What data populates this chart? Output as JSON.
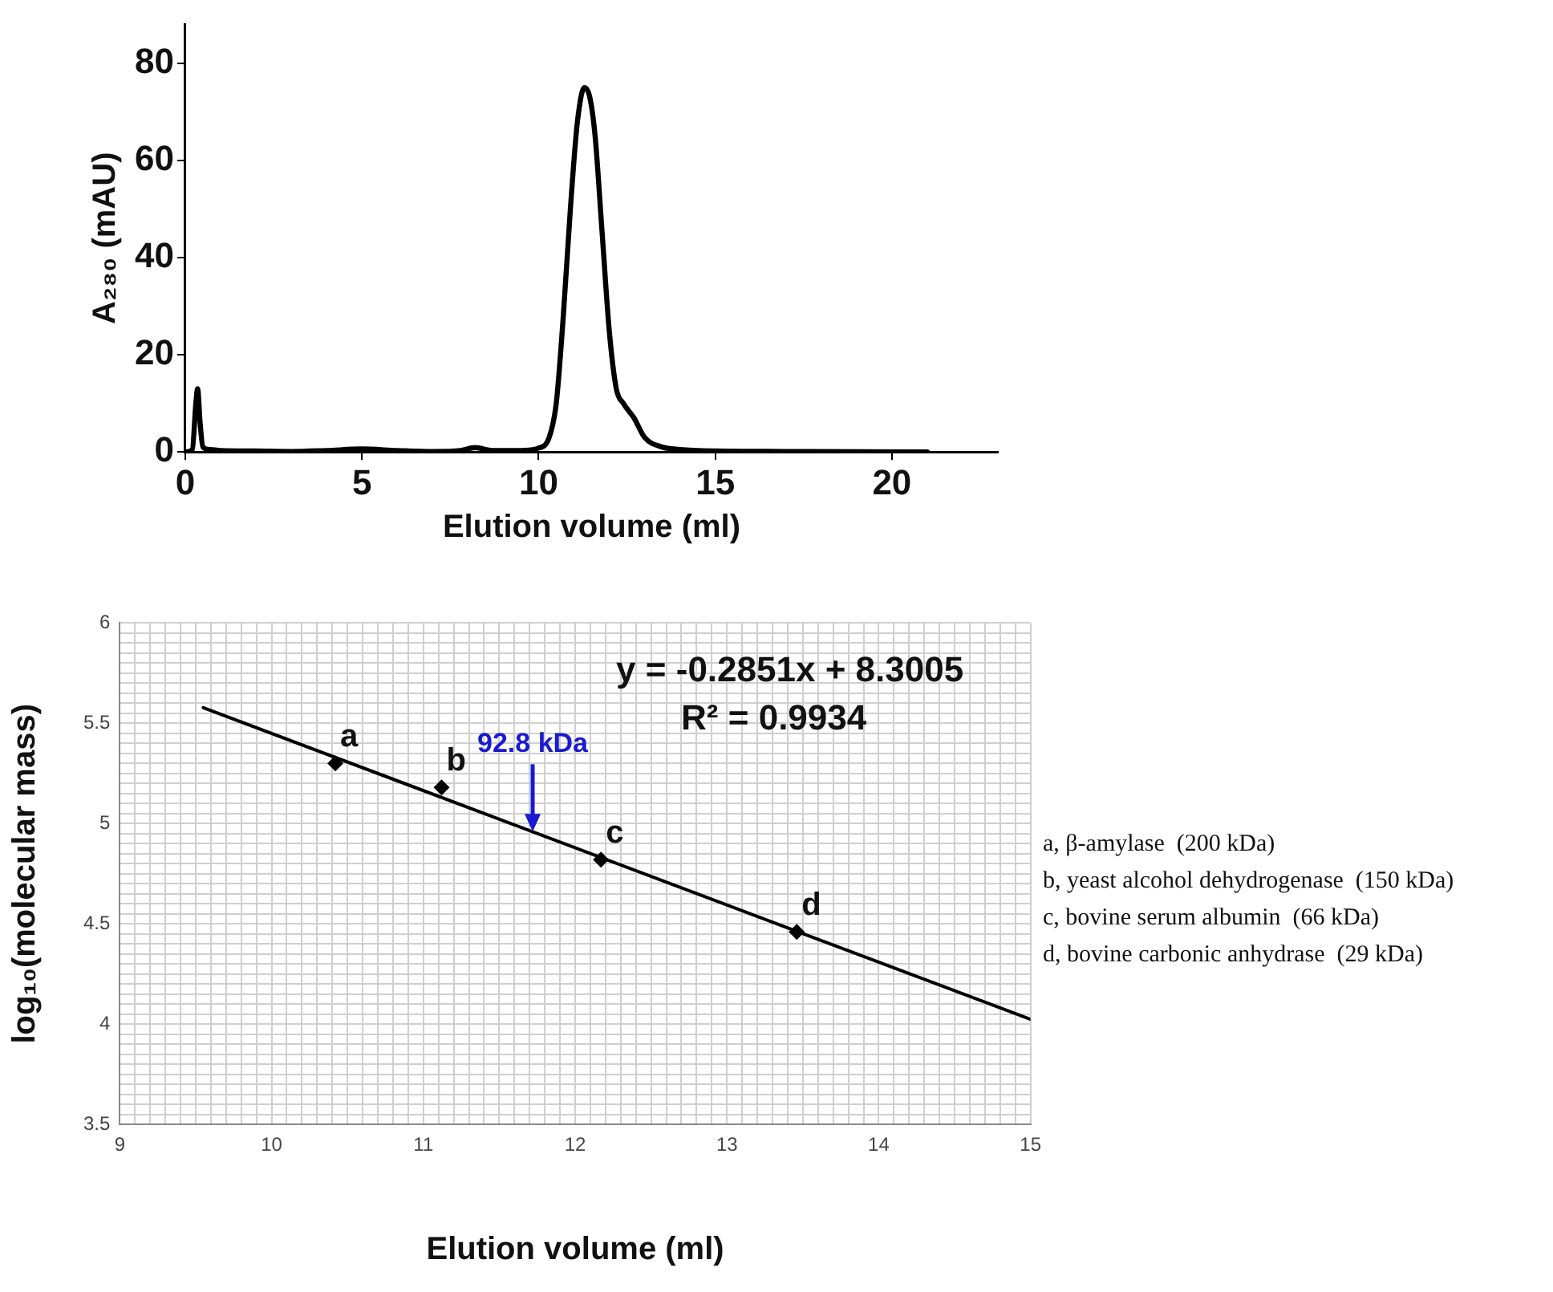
{
  "chart_data": [
    {
      "type": "line",
      "xlabel": "Elution volume (ml)",
      "ylabel": "A₂₈₀ (mAU)",
      "marker": "none",
      "grid": false,
      "x": [
        0,
        0.2,
        0.3,
        0.35,
        0.42,
        0.5,
        0.7,
        1,
        2,
        3,
        4,
        5,
        6,
        7,
        7.8,
        8.2,
        8.7,
        9.5,
        10,
        10.3,
        10.5,
        10.7,
        10.9,
        11.1,
        11.3,
        11.45,
        11.6,
        11.8,
        12,
        12.2,
        12.4,
        12.7,
        13,
        13.5,
        14,
        15,
        17,
        21
      ],
      "series": [
        {
          "color": "#000000",
          "values": [
            0,
            0.5,
            10,
            13,
            6,
            1,
            0.5,
            0.3,
            0.2,
            0.1,
            0.3,
            0.6,
            0.3,
            0.1,
            0.3,
            0.9,
            0.3,
            0.3,
            0.8,
            3,
            10,
            28,
            50,
            68,
            75,
            73,
            65,
            45,
            25,
            13,
            10,
            7,
            3,
            1,
            0.5,
            0.2,
            0.1,
            0
          ]
        }
      ],
      "xlim": [
        0,
        23
      ],
      "ylim": [
        0,
        88
      ],
      "xticks": [
        0,
        5,
        10,
        15,
        20
      ],
      "yticks": [
        0,
        20,
        40,
        60,
        80
      ]
    },
    {
      "type": "scatter",
      "xlabel": "Elution volume (ml)",
      "ylabel": "log₁₀(molecular mass)",
      "marker": "diamond",
      "grid": true,
      "series": [
        {
          "color": "#000000",
          "x": [
            10.42,
            11.12,
            12.17,
            13.46
          ],
          "values": [
            5.3,
            5.18,
            4.82,
            4.46
          ]
        },
        {
          "type": "line",
          "marker": "none",
          "color": "#000000",
          "x": [
            9.55,
            15
          ],
          "values": [
            5.578,
            4.024
          ]
        }
      ],
      "annotations": [
        "y = -0.2851x + 8.3005",
        "R² = 0.9934",
        "a, β-amylase  (200 kDa)",
        "b, yeast alcohol dehydrogenase  (150 kDa)",
        "c, bovine serum albumin  (66 kDa)",
        "d, bovine carbonic anhydrase  (29 kDa)",
        {
          "text": "a",
          "x": 10.42,
          "y": 5.3
        },
        {
          "text": "b",
          "x": 11.12,
          "y": 5.18
        },
        {
          "text": "c",
          "x": 12.17,
          "y": 4.82
        },
        {
          "text": "d",
          "x": 13.46,
          "y": 4.46
        },
        {
          "text": "92.8 kDa",
          "x": 11.72,
          "y": 4.96
        }
      ],
      "xlim": [
        9,
        15
      ],
      "ylim": [
        3.5,
        6
      ],
      "xticks": [
        9,
        {
          "value": 9.1,
          "label": null
        },
        {
          "value": 9.2,
          "label": null
        },
        {
          "value": 9.3,
          "label": null
        },
        {
          "value": 9.4,
          "label": null
        },
        {
          "value": 9.5,
          "label": null
        },
        {
          "value": 9.6,
          "label": null
        },
        {
          "value": 9.7,
          "label": null
        },
        {
          "value": 9.8,
          "label": null
        },
        {
          "value": 9.9,
          "label": null
        },
        10,
        {
          "value": 10.1,
          "label": null
        },
        {
          "value": 10.2,
          "label": null
        },
        {
          "value": 10.3,
          "label": null
        },
        {
          "value": 10.4,
          "label": null
        },
        {
          "value": 10.5,
          "label": null
        },
        {
          "value": 10.6,
          "label": null
        },
        {
          "value": 10.7,
          "label": null
        },
        {
          "value": 10.8,
          "label": null
        },
        {
          "value": 10.9,
          "label": null
        },
        11,
        {
          "value": 11.1,
          "label": null
        },
        {
          "value": 11.2,
          "label": null
        },
        {
          "value": 11.3,
          "label": null
        },
        {
          "value": 11.4,
          "label": null
        },
        {
          "value": 11.5,
          "label": null
        },
        {
          "value": 11.6,
          "label": null
        },
        {
          "value": 11.7,
          "label": null
        },
        {
          "value": 11.8,
          "label": null
        },
        {
          "value": 11.9,
          "label": null
        },
        12,
        {
          "value": 12.1,
          "label": null
        },
        {
          "value": 12.2,
          "label": null
        },
        {
          "value": 12.3,
          "label": null
        },
        {
          "value": 12.4,
          "label": null
        },
        {
          "value": 12.5,
          "label": null
        },
        {
          "value": 12.6,
          "label": null
        },
        {
          "value": 12.7,
          "label": null
        },
        {
          "value": 12.8,
          "label": null
        },
        {
          "value": 12.9,
          "label": null
        },
        13,
        {
          "value": 13.1,
          "label": null
        },
        {
          "value": 13.2,
          "label": null
        },
        {
          "value": 13.3,
          "label": null
        },
        {
          "value": 13.4,
          "label": null
        },
        {
          "value": 13.5,
          "label": null
        },
        {
          "value": 13.6,
          "label": null
        },
        {
          "value": 13.7,
          "label": null
        },
        {
          "value": 13.8,
          "label": null
        },
        {
          "value": 13.9,
          "label": null
        },
        14,
        {
          "value": 14.1,
          "label": null
        },
        {
          "value": 14.2,
          "label": null
        },
        {
          "value": 14.3,
          "label": null
        },
        {
          "value": 14.4,
          "label": null
        },
        {
          "value": 14.5,
          "label": null
        },
        {
          "value": 14.6,
          "label": null
        },
        {
          "value": 14.7,
          "label": null
        },
        {
          "value": 14.8,
          "label": null
        },
        {
          "value": 14.9,
          "label": null
        },
        15
      ],
      "yticks": [
        3.5,
        {
          "value": 3.55,
          "label": null
        },
        {
          "value": 3.6,
          "label": null
        },
        {
          "value": 3.65,
          "label": null
        },
        {
          "value": 3.7,
          "label": null
        },
        {
          "value": 3.75,
          "label": null
        },
        {
          "value": 3.8,
          "label": null
        },
        {
          "value": 3.85,
          "label": null
        },
        {
          "value": 3.9,
          "label": null
        },
        {
          "value": 3.95,
          "label": null
        },
        4,
        {
          "value": 4.05,
          "label": null
        },
        {
          "value": 4.1,
          "label": null
        },
        {
          "value": 4.15,
          "label": null
        },
        {
          "value": 4.2,
          "label": null
        },
        {
          "value": 4.25,
          "label": null
        },
        {
          "value": 4.3,
          "label": null
        },
        {
          "value": 4.35,
          "label": null
        },
        {
          "value": 4.4,
          "label": null
        },
        {
          "value": 4.45,
          "label": null
        },
        4.5,
        {
          "value": 4.55,
          "label": null
        },
        {
          "value": 4.6,
          "label": null
        },
        {
          "value": 4.65,
          "label": null
        },
        {
          "value": 4.7,
          "label": null
        },
        {
          "value": 4.75,
          "label": null
        },
        {
          "value": 4.8,
          "label": null
        },
        {
          "value": 4.85,
          "label": null
        },
        {
          "value": 4.9,
          "label": null
        },
        {
          "value": 4.95,
          "label": null
        },
        5,
        {
          "value": 5.05,
          "label": null
        },
        {
          "value": 5.1,
          "label": null
        },
        {
          "value": 5.15,
          "label": null
        },
        {
          "value": 5.2,
          "label": null
        },
        {
          "value": 5.25,
          "label": null
        },
        {
          "value": 5.3,
          "label": null
        },
        {
          "value": 5.35,
          "label": null
        },
        {
          "value": 5.4,
          "label": null
        },
        {
          "value": 5.45,
          "label": null
        },
        5.5,
        {
          "value": 5.55,
          "label": null
        },
        {
          "value": 5.6,
          "label": null
        },
        {
          "value": 5.65,
          "label": null
        },
        {
          "value": 5.7,
          "label": null
        },
        {
          "value": 5.75,
          "label": null
        },
        {
          "value": 5.8,
          "label": null
        },
        {
          "value": 5.85,
          "label": null
        },
        {
          "value": 5.9,
          "label": null
        },
        {
          "value": 5.95,
          "label": null
        },
        6
      ]
    }
  ]
}
